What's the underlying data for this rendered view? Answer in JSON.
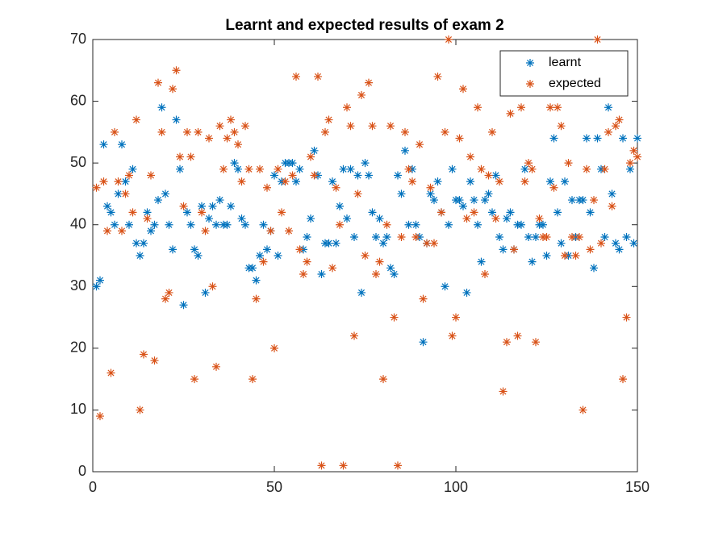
{
  "chart_data": {
    "type": "scatter",
    "title": "Learnt and expected results of exam 2",
    "x": [
      1,
      2,
      3,
      4,
      5,
      6,
      7,
      8,
      9,
      10,
      11,
      12,
      13,
      14,
      15,
      16,
      17,
      18,
      19,
      20,
      21,
      22,
      23,
      24,
      25,
      26,
      27,
      28,
      29,
      30,
      31,
      32,
      33,
      34,
      35,
      36,
      37,
      38,
      39,
      40,
      41,
      42,
      43,
      44,
      45,
      46,
      47,
      48,
      49,
      50,
      51,
      52,
      53,
      54,
      55,
      56,
      57,
      58,
      59,
      60,
      61,
      62,
      63,
      64,
      65,
      66,
      67,
      68,
      69,
      70,
      71,
      72,
      73,
      74,
      75,
      76,
      77,
      78,
      79,
      80,
      81,
      82,
      83,
      84,
      85,
      86,
      87,
      88,
      89,
      90,
      91,
      92,
      93,
      94,
      95,
      96,
      97,
      98,
      99,
      100,
      101,
      102,
      103,
      104,
      105,
      106,
      107,
      108,
      109,
      110,
      111,
      112,
      113,
      114,
      115,
      116,
      117,
      118,
      119,
      120,
      121,
      122,
      123,
      124,
      125,
      126,
      127,
      128,
      129,
      130,
      131,
      132,
      133,
      134,
      135,
      136,
      137,
      138,
      139,
      140,
      141,
      142,
      143,
      144,
      145,
      146,
      147,
      148,
      149,
      150
    ],
    "series": [
      {
        "name": "learnt",
        "color": "#0072BD",
        "values": [
          30,
          31,
          53,
          43,
          42,
          40,
          45,
          53,
          47,
          40,
          49,
          37,
          35,
          37,
          42,
          39,
          40,
          44,
          59,
          45,
          40,
          36,
          57,
          49,
          27,
          42,
          40,
          36,
          35,
          43,
          29,
          41,
          43,
          40,
          44,
          40,
          40,
          43,
          50,
          49,
          41,
          40,
          33,
          33,
          31,
          35,
          40,
          36,
          39,
          48,
          35,
          47,
          50,
          50,
          50,
          47,
          49,
          36,
          38,
          41,
          52,
          48,
          32,
          37,
          37,
          47,
          37,
          43,
          49,
          41,
          49,
          38,
          48,
          29,
          50,
          48,
          42,
          38,
          41,
          37,
          38,
          33,
          32,
          48,
          45,
          52,
          40,
          49,
          40,
          38,
          21,
          37,
          45,
          44,
          47,
          42,
          30,
          40,
          49,
          44,
          44,
          43,
          29,
          47,
          44,
          40,
          34,
          44,
          45,
          42,
          48,
          38,
          36,
          41,
          42,
          36,
          40,
          40,
          49,
          38,
          34,
          38,
          40,
          40,
          35,
          47,
          54,
          42,
          37,
          47,
          35,
          44,
          38,
          44,
          44,
          54,
          42,
          33,
          54,
          49,
          38,
          59,
          45,
          37,
          36,
          54,
          38,
          49,
          37,
          54
        ]
      },
      {
        "name": "expected",
        "color": "#D95319",
        "values": [
          46,
          9,
          47,
          39,
          16,
          55,
          47,
          39,
          45,
          48,
          42,
          57,
          10,
          19,
          41,
          48,
          18,
          63,
          55,
          28,
          29,
          62,
          65,
          51,
          43,
          55,
          51,
          15,
          55,
          42,
          39,
          54,
          30,
          17,
          56,
          49,
          54,
          57,
          55,
          53,
          47,
          56,
          49,
          15,
          28,
          49,
          34,
          46,
          39,
          20,
          49,
          42,
          47,
          39,
          48,
          64,
          36,
          32,
          34,
          51,
          48,
          64,
          1,
          55,
          57,
          33,
          46,
          40,
          1,
          59,
          56,
          22,
          45,
          61,
          35,
          63,
          56,
          32,
          34,
          15,
          40,
          56,
          25,
          1,
          38,
          55,
          49,
          47,
          38,
          53,
          28,
          37,
          46,
          37,
          64,
          42,
          55,
          70,
          22,
          25,
          54,
          62,
          41,
          51,
          42,
          59,
          49,
          32,
          48,
          55,
          41,
          47,
          13,
          21,
          58,
          36,
          22,
          59,
          47,
          50,
          49,
          21,
          41,
          38,
          38,
          59,
          46,
          59,
          56,
          35,
          50,
          38,
          35,
          38,
          10,
          49,
          36,
          44,
          70,
          37,
          49,
          55,
          43,
          56,
          57,
          15,
          25,
          50,
          52,
          51
        ]
      }
    ],
    "xlim": [
      0,
      150
    ],
    "xticks": [
      0,
      50,
      100,
      150
    ],
    "ylim": [
      0,
      70
    ],
    "yticks": [
      0,
      10,
      20,
      30,
      40,
      50,
      60,
      70
    ],
    "legend": "northeast",
    "grid": false
  }
}
